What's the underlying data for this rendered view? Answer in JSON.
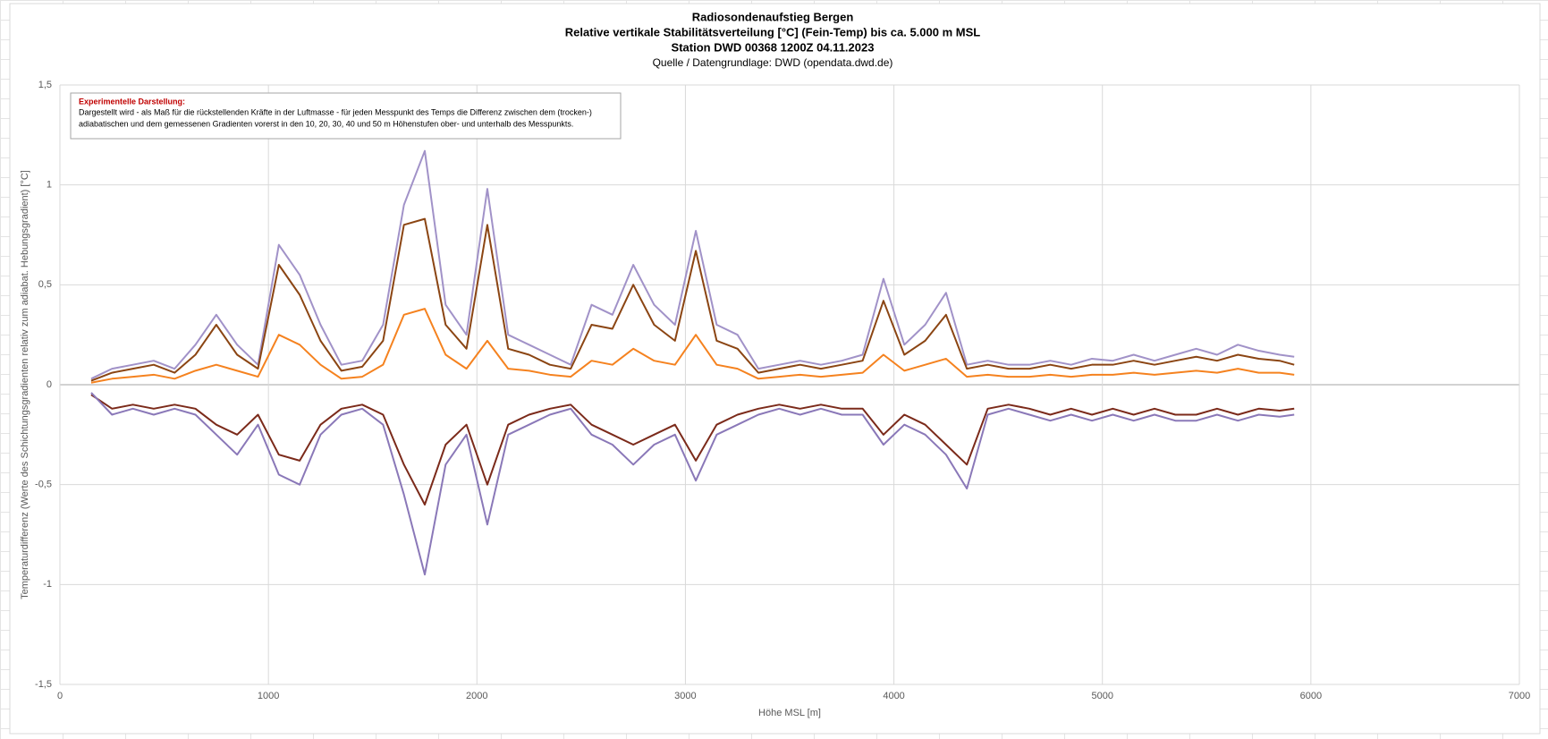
{
  "chart_data": {
    "type": "line",
    "title": "Radiosondenaufstieg Bergen",
    "subtitles": [
      "Relative vertikale Stabilitätsverteilung [°C] (Fein-Temp) bis ca. 5.000 m MSL",
      "Station DWD 00368 1200Z 04.11.2023",
      "Quelle / Datengrundlage: DWD (opendata.dwd.de)"
    ],
    "annotation": {
      "heading": "Experimentelle Darstellung:",
      "lines": [
        "Dargestellt wird - als Maß für die rückstellenden Kräfte in der Luftmasse - für jeden Messpunkt des Temps  die Differenz zwischen dem (trocken-)",
        "adiabatischen und dem gemessenen Gradienten vorerst in den 10, 20, 30, 40 und 50 m Höhenstufen ober- und unterhalb des Messpunkts."
      ]
    },
    "x_label": "Höhe MSL [m]",
    "y_label": "Temperaturdifferenz (Werte des Schichtungsgradienten relativ zum  adiabat. Hebungsgradient) [°C]",
    "x": [
      150,
      250,
      350,
      450,
      550,
      650,
      750,
      850,
      950,
      1050,
      1150,
      1250,
      1350,
      1450,
      1550,
      1650,
      1750,
      1850,
      1950,
      2050,
      2150,
      2250,
      2350,
      2450,
      2550,
      2650,
      2750,
      2850,
      2950,
      3050,
      3150,
      3250,
      3350,
      3450,
      3550,
      3650,
      3750,
      3850,
      3950,
      4050,
      4150,
      4250,
      4350,
      4450,
      4550,
      4650,
      4750,
      4850,
      4950,
      5050,
      5150,
      5250,
      5350,
      5450,
      5550,
      5650,
      5750,
      5850,
      5920
    ],
    "series": [
      {
        "color": "#a192c8",
        "values": [
          0.03,
          0.08,
          0.1,
          0.12,
          0.08,
          0.2,
          0.35,
          0.2,
          0.1,
          0.7,
          0.55,
          0.3,
          0.1,
          0.12,
          0.3,
          0.9,
          1.17,
          0.4,
          0.25,
          0.98,
          0.25,
          0.2,
          0.15,
          0.1,
          0.4,
          0.35,
          0.6,
          0.4,
          0.3,
          0.77,
          0.3,
          0.25,
          0.08,
          0.1,
          0.12,
          0.1,
          0.12,
          0.15,
          0.53,
          0.2,
          0.3,
          0.46,
          0.1,
          0.12,
          0.1,
          0.1,
          0.12,
          0.1,
          0.13,
          0.12,
          0.15,
          0.12,
          0.15,
          0.18,
          0.15,
          0.2,
          0.17,
          0.15,
          0.14
        ]
      },
      {
        "color": "#8b4513",
        "values": [
          0.02,
          0.06,
          0.08,
          0.1,
          0.06,
          0.15,
          0.3,
          0.15,
          0.08,
          0.6,
          0.45,
          0.22,
          0.07,
          0.09,
          0.22,
          0.8,
          0.83,
          0.3,
          0.18,
          0.8,
          0.18,
          0.15,
          0.1,
          0.08,
          0.3,
          0.28,
          0.5,
          0.3,
          0.22,
          0.67,
          0.22,
          0.18,
          0.06,
          0.08,
          0.1,
          0.08,
          0.1,
          0.12,
          0.42,
          0.15,
          0.22,
          0.35,
          0.08,
          0.1,
          0.08,
          0.08,
          0.1,
          0.08,
          0.1,
          0.1,
          0.12,
          0.1,
          0.12,
          0.14,
          0.12,
          0.15,
          0.13,
          0.12,
          0.1
        ]
      },
      {
        "color": "#f5821f",
        "values": [
          0.01,
          0.03,
          0.04,
          0.05,
          0.03,
          0.07,
          0.1,
          0.07,
          0.04,
          0.25,
          0.2,
          0.1,
          0.03,
          0.04,
          0.1,
          0.35,
          0.38,
          0.15,
          0.08,
          0.22,
          0.08,
          0.07,
          0.05,
          0.04,
          0.12,
          0.1,
          0.18,
          0.12,
          0.1,
          0.25,
          0.1,
          0.08,
          0.03,
          0.04,
          0.05,
          0.04,
          0.05,
          0.06,
          0.15,
          0.07,
          0.1,
          0.13,
          0.04,
          0.05,
          0.04,
          0.04,
          0.05,
          0.04,
          0.05,
          0.05,
          0.06,
          0.05,
          0.06,
          0.07,
          0.06,
          0.08,
          0.06,
          0.06,
          0.05
        ]
      },
      {
        "color": "#7b2a1a",
        "values": [
          -0.05,
          -0.12,
          -0.1,
          -0.12,
          -0.1,
          -0.12,
          -0.2,
          -0.25,
          -0.15,
          -0.35,
          -0.38,
          -0.2,
          -0.12,
          -0.1,
          -0.15,
          -0.4,
          -0.6,
          -0.3,
          -0.2,
          -0.5,
          -0.2,
          -0.15,
          -0.12,
          -0.1,
          -0.2,
          -0.25,
          -0.3,
          -0.25,
          -0.2,
          -0.38,
          -0.2,
          -0.15,
          -0.12,
          -0.1,
          -0.12,
          -0.1,
          -0.12,
          -0.12,
          -0.25,
          -0.15,
          -0.2,
          -0.3,
          -0.4,
          -0.12,
          -0.1,
          -0.12,
          -0.15,
          -0.12,
          -0.15,
          -0.12,
          -0.15,
          -0.12,
          -0.15,
          -0.15,
          -0.12,
          -0.15,
          -0.12,
          -0.13,
          -0.12
        ]
      },
      {
        "color": "#8a78b8",
        "values": [
          -0.04,
          -0.15,
          -0.12,
          -0.15,
          -0.12,
          -0.15,
          -0.25,
          -0.35,
          -0.2,
          -0.45,
          -0.5,
          -0.25,
          -0.15,
          -0.12,
          -0.2,
          -0.55,
          -0.95,
          -0.4,
          -0.25,
          -0.7,
          -0.25,
          -0.2,
          -0.15,
          -0.12,
          -0.25,
          -0.3,
          -0.4,
          -0.3,
          -0.25,
          -0.48,
          -0.25,
          -0.2,
          -0.15,
          -0.12,
          -0.15,
          -0.12,
          -0.15,
          -0.15,
          -0.3,
          -0.2,
          -0.25,
          -0.35,
          -0.52,
          -0.15,
          -0.12,
          -0.15,
          -0.18,
          -0.15,
          -0.18,
          -0.15,
          -0.18,
          -0.15,
          -0.18,
          -0.18,
          -0.15,
          -0.18,
          -0.15,
          -0.16,
          -0.15
        ]
      }
    ],
    "xlim": [
      0,
      7000
    ],
    "xticks": [
      0,
      1000,
      2000,
      3000,
      4000,
      5000,
      6000,
      7000
    ],
    "ylim": [
      -1.5,
      1.5
    ],
    "yticks": [
      {
        "value": 1.5,
        "label": "1,5"
      },
      1,
      {
        "value": 0.5,
        "label": "0,5"
      },
      0,
      {
        "value": -0.5,
        "label": "-0,5"
      },
      -1,
      {
        "value": -1.5,
        "label": "-1,5"
      }
    ],
    "grid": true
  }
}
